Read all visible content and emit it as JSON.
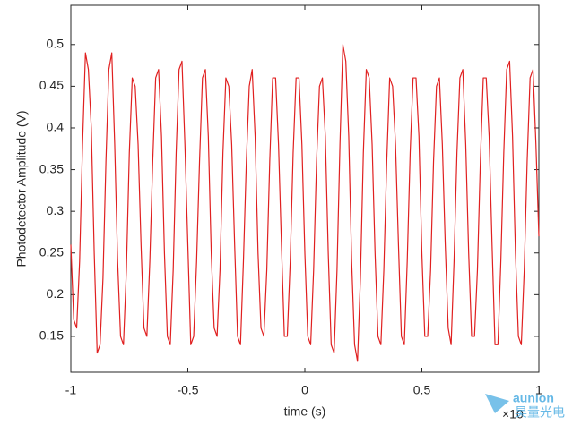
{
  "chart_data": {
    "type": "line",
    "xlabel": "time (s)",
    "ylabel": "Photodetector Amplitude (V)",
    "x_multiplier": "×10",
    "watermark": [
      "aunion",
      "昊量光电"
    ],
    "color": "#e02020",
    "xlim": [
      -1,
      1
    ],
    "xticks": [
      -1,
      -0.5,
      0,
      0.5,
      1
    ],
    "ylim": [
      0.107,
      0.547
    ],
    "yticks": [
      0.15,
      0.2,
      0.25,
      0.3,
      0.35,
      0.4,
      0.45,
      0.5
    ],
    "x": [
      -1,
      -0.9875,
      -0.975,
      -0.9625,
      -0.95,
      -0.9375,
      -0.925,
      -0.9125,
      -0.9,
      -0.8875,
      -0.875,
      -0.8625,
      -0.85,
      -0.8375,
      -0.825,
      -0.8125,
      -0.8,
      -0.7875,
      -0.775,
      -0.7625,
      -0.75,
      -0.7375,
      -0.725,
      -0.7125,
      -0.7,
      -0.6875,
      -0.675,
      -0.6625,
      -0.65,
      -0.6375,
      -0.625,
      -0.6125,
      -0.6,
      -0.5875,
      -0.575,
      -0.5625,
      -0.55,
      -0.5375,
      -0.525,
      -0.5125,
      -0.5,
      -0.4875,
      -0.475,
      -0.4625,
      -0.45,
      -0.4375,
      -0.425,
      -0.4125,
      -0.4,
      -0.3875,
      -0.375,
      -0.3625,
      -0.35,
      -0.3375,
      -0.325,
      -0.3125,
      -0.3,
      -0.2875,
      -0.275,
      -0.2625,
      -0.25,
      -0.2375,
      -0.225,
      -0.2125,
      -0.2,
      -0.1875,
      -0.175,
      -0.1625,
      -0.15,
      -0.1375,
      -0.125,
      -0.1125,
      -0.1,
      -0.0875,
      -0.075,
      -0.0625,
      -0.05,
      -0.0375,
      -0.025,
      -0.0125,
      0,
      0.0125,
      0.025,
      0.0375,
      0.05,
      0.0625,
      0.075,
      0.0875,
      0.1,
      0.1125,
      0.125,
      0.1375,
      0.15,
      0.1625,
      0.175,
      0.1875,
      0.2,
      0.2125,
      0.225,
      0.2375,
      0.25,
      0.2625,
      0.275,
      0.2875,
      0.3,
      0.3125,
      0.325,
      0.3375,
      0.35,
      0.3625,
      0.375,
      0.3875,
      0.4,
      0.4125,
      0.425,
      0.4375,
      0.45,
      0.4625,
      0.475,
      0.4875,
      0.5,
      0.5125,
      0.525,
      0.5375,
      0.55,
      0.5625,
      0.575,
      0.5875,
      0.6,
      0.6125,
      0.625,
      0.6375,
      0.65,
      0.6625,
      0.675,
      0.6875,
      0.7,
      0.7125,
      0.725,
      0.7375,
      0.75,
      0.7625,
      0.775,
      0.7875,
      0.8,
      0.8125,
      0.825,
      0.8375,
      0.85,
      0.8625,
      0.875,
      0.8875,
      0.9,
      0.9125,
      0.925,
      0.9375,
      0.95,
      0.9625,
      0.975,
      0.9875,
      1
    ],
    "values": [
      0.26,
      0.17,
      0.16,
      0.24,
      0.38,
      0.49,
      0.47,
      0.4,
      0.25,
      0.13,
      0.14,
      0.22,
      0.36,
      0.47,
      0.49,
      0.38,
      0.24,
      0.15,
      0.14,
      0.23,
      0.37,
      0.46,
      0.45,
      0.38,
      0.26,
      0.16,
      0.15,
      0.24,
      0.36,
      0.46,
      0.47,
      0.39,
      0.25,
      0.15,
      0.14,
      0.23,
      0.37,
      0.47,
      0.48,
      0.38,
      0.26,
      0.14,
      0.15,
      0.24,
      0.36,
      0.46,
      0.47,
      0.39,
      0.25,
      0.16,
      0.15,
      0.23,
      0.37,
      0.46,
      0.45,
      0.38,
      0.26,
      0.15,
      0.14,
      0.24,
      0.36,
      0.45,
      0.47,
      0.39,
      0.25,
      0.16,
      0.15,
      0.23,
      0.36,
      0.46,
      0.46,
      0.38,
      0.26,
      0.15,
      0.15,
      0.24,
      0.37,
      0.46,
      0.46,
      0.38,
      0.25,
      0.15,
      0.14,
      0.23,
      0.36,
      0.45,
      0.46,
      0.39,
      0.25,
      0.14,
      0.13,
      0.23,
      0.38,
      0.5,
      0.48,
      0.39,
      0.24,
      0.14,
      0.12,
      0.22,
      0.37,
      0.47,
      0.46,
      0.38,
      0.25,
      0.15,
      0.14,
      0.23,
      0.36,
      0.46,
      0.45,
      0.38,
      0.26,
      0.15,
      0.14,
      0.24,
      0.37,
      0.46,
      0.46,
      0.39,
      0.25,
      0.15,
      0.15,
      0.23,
      0.36,
      0.45,
      0.46,
      0.38,
      0.26,
      0.16,
      0.14,
      0.24,
      0.37,
      0.46,
      0.47,
      0.38,
      0.25,
      0.15,
      0.15,
      0.23,
      0.36,
      0.46,
      0.46,
      0.39,
      0.26,
      0.14,
      0.14,
      0.24,
      0.37,
      0.47,
      0.48,
      0.39,
      0.25,
      0.15,
      0.14,
      0.23,
      0.36,
      0.46,
      0.47,
      0.38,
      0.27
    ]
  }
}
